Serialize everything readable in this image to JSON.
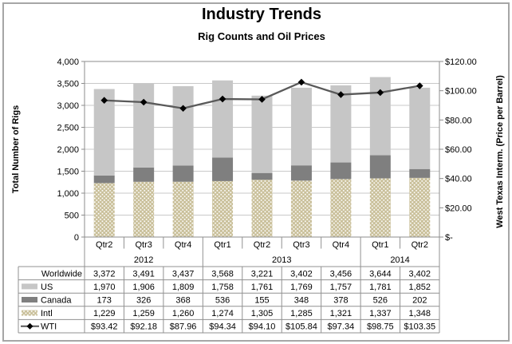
{
  "chart_data": {
    "type": "combo",
    "subtypes": [
      "stacked-bar",
      "line"
    ],
    "title": "Industry Trends",
    "subtitle": "Rig Counts and Oil Prices",
    "categories": [
      "Qtr2",
      "Qtr3",
      "Qtr4",
      "Qtr1",
      "Qtr2",
      "Qtr3",
      "Qtr4",
      "Qtr1",
      "Qtr2"
    ],
    "year_groups": [
      {
        "label": "2012",
        "count": 3
      },
      {
        "label": "2013",
        "count": 4
      },
      {
        "label": "2014",
        "count": 2
      }
    ],
    "left_axis": {
      "title": "Total Number of Rigs",
      "min": 0,
      "max": 4000,
      "step": 500,
      "tick_labels": [
        "0",
        "500",
        "1,000",
        "1,500",
        "2,000",
        "2,500",
        "3,000",
        "3,500",
        "4,000"
      ]
    },
    "right_axis": {
      "title": "West Texas Interm. (Price per Barrel)",
      "min": 0,
      "max": 120,
      "step": 20,
      "tick_labels": [
        "$-",
        "$20.00",
        "$40.00",
        "$60.00",
        "$80.00",
        "$100.00",
        "$120.00"
      ]
    },
    "bar_series": [
      {
        "name": "Intl",
        "values": [
          1229,
          1259,
          1260,
          1274,
          1305,
          1285,
          1321,
          1337,
          1348
        ],
        "color": "#C9BF99",
        "fill": "pattern-white-dots"
      },
      {
        "name": "Canada",
        "values": [
          173,
          326,
          368,
          536,
          155,
          348,
          378,
          526,
          202
        ],
        "color": "#7F7F7F",
        "fill": "solid"
      },
      {
        "name": "US",
        "values": [
          1970,
          1906,
          1809,
          1758,
          1761,
          1769,
          1757,
          1781,
          1852
        ],
        "color": "#C6C6C6",
        "fill": "solid"
      }
    ],
    "line_series": {
      "name": "WTI",
      "values": [
        93.42,
        92.18,
        87.96,
        94.34,
        94.1,
        105.84,
        97.34,
        98.75,
        103.35
      ],
      "color": "#595959",
      "marker": "diamond",
      "marker_color": "#000000"
    },
    "grid": true,
    "legend_position": "data-table"
  },
  "data_table": {
    "rows": [
      {
        "label": "Worldwide",
        "key": "none",
        "values": [
          "3,372",
          "3,491",
          "3,437",
          "3,568",
          "3,221",
          "3,402",
          "3,456",
          "3,644",
          "3,402"
        ]
      },
      {
        "label": "US",
        "key": "swatch-us",
        "values": [
          "1,970",
          "1,906",
          "1,809",
          "1,758",
          "1,761",
          "1,769",
          "1,757",
          "1,781",
          "1,852"
        ]
      },
      {
        "label": "Canada",
        "key": "swatch-canada",
        "values": [
          "173",
          "326",
          "368",
          "536",
          "155",
          "348",
          "378",
          "526",
          "202"
        ]
      },
      {
        "label": "Intl",
        "key": "swatch-intl",
        "values": [
          "1,229",
          "1,259",
          "1,260",
          "1,274",
          "1,305",
          "1,285",
          "1,321",
          "1,337",
          "1,348"
        ]
      },
      {
        "label": "WTI",
        "key": "line-diamond",
        "values": [
          "$93.42",
          "$92.18",
          "$87.96",
          "$94.34",
          "$94.10",
          "$105.84",
          "$97.34",
          "$98.75",
          "$103.35"
        ]
      }
    ]
  },
  "colors": {
    "us": "#C6C6C6",
    "canada": "#7F7F7F",
    "intl": "#C9BF99",
    "wti_line": "#595959",
    "marker": "#000000",
    "grid": "#C9C9C9",
    "plot_border": "#8C8C8C",
    "table_border": "#919191",
    "frame": "#A6A6A6"
  }
}
